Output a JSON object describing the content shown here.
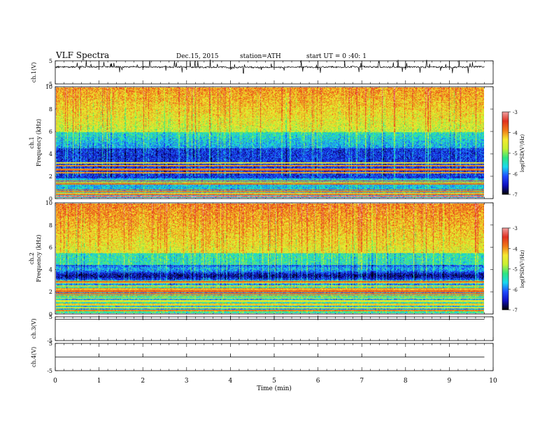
{
  "header": {
    "title": "VLF Spectra",
    "date": "Dec.15, 2015",
    "station": "station=ATH",
    "start": "start UT = 0 :40: 1"
  },
  "colors": {
    "colormap": [
      "#000000",
      "#1010c0",
      "#1f4cff",
      "#19d9ee",
      "#30e680",
      "#c8f030",
      "#f5e830",
      "#f07818",
      "#e03020",
      "#f0a0a0",
      "#ffffff"
    ]
  },
  "chart_data": {
    "type": "heatmap",
    "xlabel": "Time (min)",
    "xlim": [
      0,
      10
    ],
    "xticks": [
      0,
      1,
      2,
      3,
      4,
      5,
      6,
      7,
      8,
      9,
      10
    ],
    "data_end_min": 9.8,
    "panels": [
      {
        "id": "ch1_waveform",
        "type": "line",
        "ylabel": "ch.1(V)",
        "ylim": [
          -5,
          5
        ],
        "yticks": [
          5,
          -5
        ],
        "baseline_v": 2.3
      },
      {
        "id": "ch1_spectrogram",
        "type": "heatmap",
        "ylabel_top": "ch.1",
        "ylabel": "Frequency (kHz)",
        "ylim": [
          0,
          10
        ],
        "yticks": [
          0,
          2,
          4,
          6,
          8,
          10
        ],
        "colorbar": {
          "label": "log(PSD(V²/Hz)",
          "range": [
            -7,
            -3
          ],
          "ticks": [
            -3,
            -4,
            -5,
            -6,
            -7
          ]
        }
      },
      {
        "id": "ch2_spectrogram",
        "type": "heatmap",
        "ylabel_top": "ch.2",
        "ylabel": "Frequency (kHz)",
        "ylim": [
          0,
          10
        ],
        "yticks": [
          0,
          2,
          4,
          6,
          8,
          10
        ],
        "colorbar": {
          "label": "log(PSD(V²/Hz)",
          "range": [
            -7,
            -3
          ],
          "ticks": [
            -3,
            -4,
            -5,
            -6,
            -7
          ]
        }
      },
      {
        "id": "ch3_waveform",
        "type": "line",
        "ylabel": "ch.3(V)",
        "ylim": [
          -5,
          5
        ],
        "yticks": [
          5,
          -5
        ],
        "baseline_v": 4.0
      },
      {
        "id": "ch4_waveform",
        "type": "line",
        "ylabel": "ch.4(V)",
        "ylim": [
          -5,
          5
        ],
        "yticks": [
          5,
          -5
        ],
        "baseline_v": 0.0
      }
    ]
  }
}
